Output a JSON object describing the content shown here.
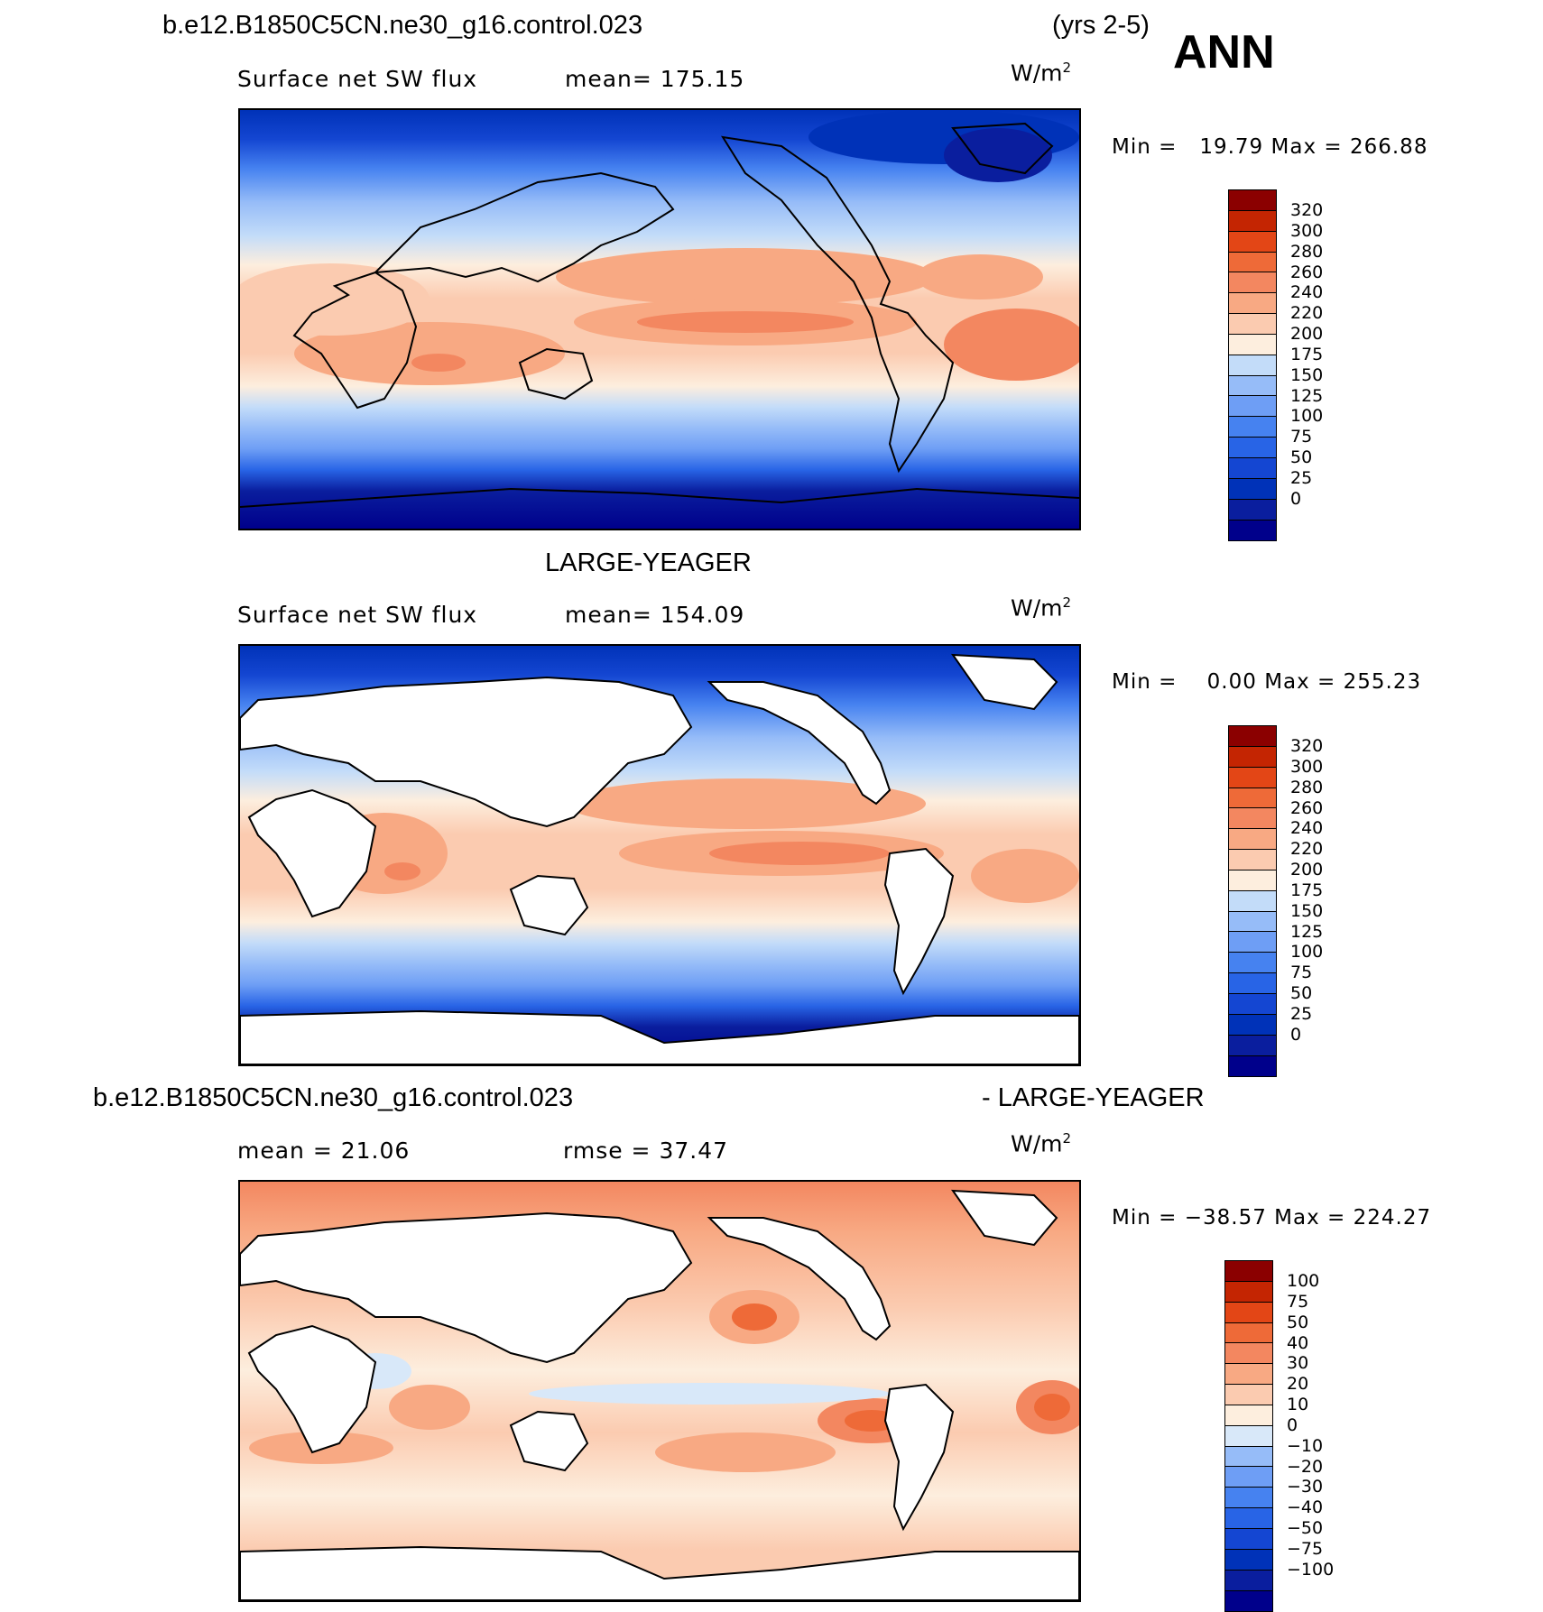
{
  "header": {
    "case_name": "b.e12.B1850C5CN.ne30_g16.control.023",
    "years": "(yrs 2-5)",
    "season": "ANN"
  },
  "colors": {
    "abs_scale": [
      "#00008b",
      "#0a1e9e",
      "#0032b8",
      "#1446d2",
      "#2864e6",
      "#4682f0",
      "#6e9ef5",
      "#96bcf8",
      "#c3dcf9",
      "#fdeede",
      "#fbcbb0",
      "#f8a983",
      "#f38760",
      "#ee6a38",
      "#e34616",
      "#c42502",
      "#8b0000"
    ],
    "diff_scale": [
      "#00008b",
      "#0a1e9e",
      "#0032b8",
      "#1446d2",
      "#2864e6",
      "#4682f0",
      "#6e9ef5",
      "#96bcf8",
      "#d8e8f9",
      "#fdeede",
      "#fbcbb0",
      "#f8a983",
      "#f38760",
      "#ee6a38",
      "#e34616",
      "#c42502",
      "#8b0000"
    ]
  },
  "panels": [
    {
      "id": "model",
      "variable_label": "Surface net SW flux",
      "mean_label": "mean= 175.15",
      "units": "W/m",
      "units_sup": "2",
      "min_label": "Min =",
      "min_value": "19.79",
      "max_label": "Max =",
      "max_value": "266.88",
      "colorbar_labels": [
        "320",
        "300",
        "280",
        "260",
        "240",
        "220",
        "200",
        "175",
        "150",
        "125",
        "100",
        "75",
        "50",
        "25",
        "0"
      ]
    },
    {
      "id": "obs",
      "title": "LARGE-YEAGER",
      "variable_label": "Surface net SW flux",
      "mean_label": "mean= 154.09",
      "units": "W/m",
      "units_sup": "2",
      "min_label": "Min =",
      "min_value": "0.00",
      "max_label": "Max =",
      "max_value": "255.23",
      "colorbar_labels": [
        "320",
        "300",
        "280",
        "260",
        "240",
        "220",
        "200",
        "175",
        "150",
        "125",
        "100",
        "75",
        "50",
        "25",
        "0"
      ]
    },
    {
      "id": "diff",
      "title_left": "b.e12.B1850C5CN.ne30_g16.control.023",
      "title_right": "- LARGE-YEAGER",
      "mean_label": "mean =   21.06",
      "rmse_label": "rmse =   37.47",
      "units": "W/m",
      "units_sup": "2",
      "min_label": "Min =",
      "min_value": "−38.57",
      "max_label": "Max =",
      "max_value": "224.27",
      "colorbar_labels": [
        "100",
        "75",
        "50",
        "40",
        "30",
        "20",
        "10",
        "0",
        "−10",
        "−20",
        "−30",
        "−40",
        "−50",
        "−75",
        "−100"
      ]
    }
  ]
}
